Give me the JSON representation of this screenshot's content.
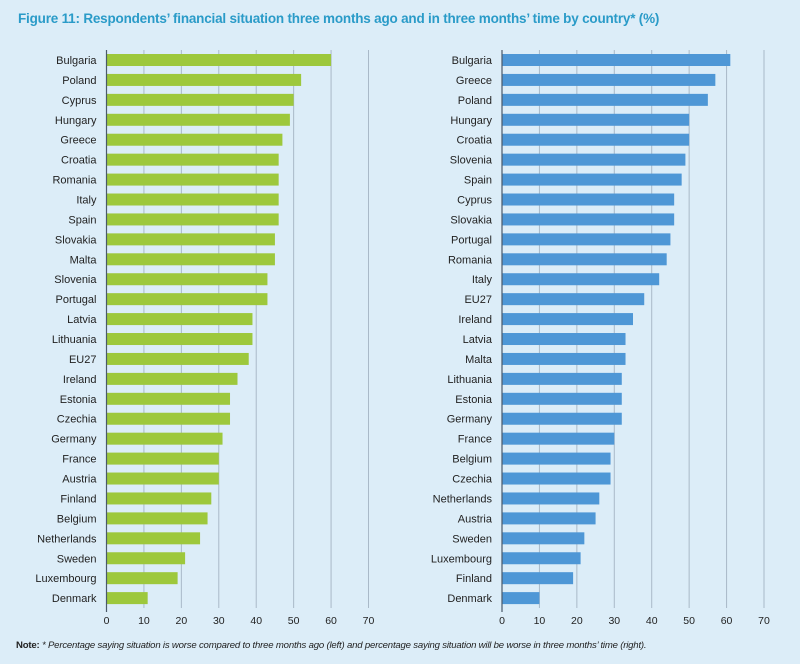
{
  "title": "Figure 11: Respondents’ financial situation three months ago and in three months’ time by country* (%)",
  "note": {
    "label": "Note:",
    "text": "* Percentage saying situation is worse compared to three months ago (left) and percentage saying situation will be worse in three months’ time (right)."
  },
  "chart_data": [
    {
      "type": "bar",
      "orientation": "horizontal",
      "color": "#9dc83c",
      "xlim": [
        0,
        70
      ],
      "xticks": [
        0,
        10,
        20,
        30,
        40,
        50,
        60,
        70
      ],
      "grid": true,
      "categories": [
        "Bulgaria",
        "Poland",
        "Cyprus",
        "Hungary",
        "Greece",
        "Croatia",
        "Romania",
        "Italy",
        "Spain",
        "Slovakia",
        "Malta",
        "Slovenia",
        "Portugal",
        "Latvia",
        "Lithuania",
        "EU27",
        "Ireland",
        "Estonia",
        "Czechia",
        "Germany",
        "France",
        "Austria",
        "Finland",
        "Belgium",
        "Netherlands",
        "Sweden",
        "Luxembourg",
        "Denmark"
      ],
      "values": [
        60,
        52,
        50,
        49,
        47,
        46,
        46,
        46,
        46,
        45,
        45,
        43,
        43,
        39,
        39,
        38,
        35,
        33,
        33,
        31,
        30,
        30,
        28,
        27,
        25,
        21,
        19,
        11
      ]
    },
    {
      "type": "bar",
      "orientation": "horizontal",
      "color": "#4e97d6",
      "xlim": [
        0,
        70
      ],
      "xticks": [
        0,
        10,
        20,
        30,
        40,
        50,
        60,
        70
      ],
      "grid": true,
      "categories": [
        "Bulgaria",
        "Greece",
        "Poland",
        "Hungary",
        "Croatia",
        "Slovenia",
        "Spain",
        "Cyprus",
        "Slovakia",
        "Portugal",
        "Romania",
        "Italy",
        "EU27",
        "Ireland",
        "Latvia",
        "Malta",
        "Lithuania",
        "Estonia",
        "Germany",
        "France",
        "Belgium",
        "Czechia",
        "Netherlands",
        "Austria",
        "Sweden",
        "Luxembourg",
        "Finland",
        "Denmark"
      ],
      "values": [
        61,
        57,
        55,
        50,
        50,
        49,
        48,
        46,
        46,
        45,
        44,
        42,
        38,
        35,
        33,
        33,
        32,
        32,
        32,
        30,
        29,
        29,
        26,
        25,
        22,
        21,
        19,
        10
      ]
    }
  ]
}
